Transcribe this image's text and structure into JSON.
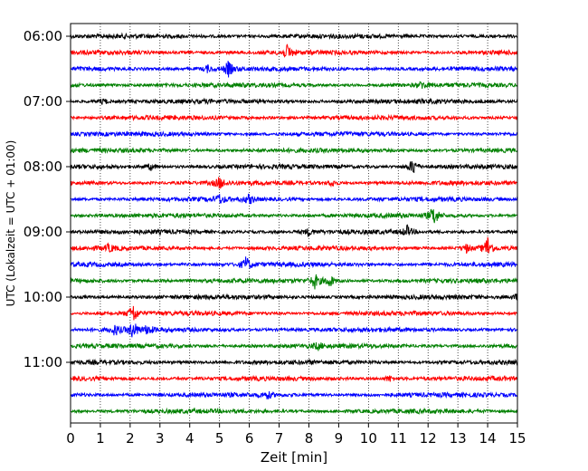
{
  "chart_data": {
    "type": "line",
    "title": "",
    "xlabel": "Zeit  [min]",
    "ylabel": "UTC (Lokalzeit = UTC + 01:00)",
    "xlim": [
      0,
      15
    ],
    "x_ticks": [
      "0",
      "1",
      "2",
      "3",
      "4",
      "5",
      "6",
      "7",
      "8",
      "9",
      "10",
      "11",
      "12",
      "13",
      "14",
      "15"
    ],
    "y_ticks": [
      "06:00",
      "07:00",
      "08:00",
      "09:00",
      "10:00",
      "11:00"
    ],
    "row_minutes": 15,
    "first_row": "06:00",
    "trace_count": 24,
    "trace_colors": [
      "#000000",
      "#ff0000",
      "#0000ff",
      "#008000"
    ],
    "grid": "vertical dotted",
    "events": [
      {
        "trace": 1,
        "minute": 7.3,
        "amp": 0.7
      },
      {
        "trace": 2,
        "minute": 5.3,
        "amp": 0.7
      },
      {
        "trace": 2,
        "minute": 4.6,
        "amp": 0.3
      },
      {
        "trace": 3,
        "minute": 11.8,
        "amp": 0.3
      },
      {
        "trace": 4,
        "minute": 1.1,
        "amp": 0.3
      },
      {
        "trace": 8,
        "minute": 11.5,
        "amp": 0.8
      },
      {
        "trace": 8,
        "minute": 2.7,
        "amp": 0.3
      },
      {
        "trace": 9,
        "minute": 5.0,
        "amp": 0.5
      },
      {
        "trace": 9,
        "minute": 8.8,
        "amp": 0.3
      },
      {
        "trace": 10,
        "minute": 5.0,
        "amp": 0.4
      },
      {
        "trace": 10,
        "minute": 6.0,
        "amp": 0.4
      },
      {
        "trace": 11,
        "minute": 12.2,
        "amp": 0.9
      },
      {
        "trace": 12,
        "minute": 11.3,
        "amp": 0.5
      },
      {
        "trace": 12,
        "minute": 8.0,
        "amp": 0.3
      },
      {
        "trace": 13,
        "minute": 14.0,
        "amp": 1.1
      },
      {
        "trace": 13,
        "minute": 13.3,
        "amp": 0.4
      },
      {
        "trace": 13,
        "minute": 1.3,
        "amp": 0.3
      },
      {
        "trace": 14,
        "minute": 5.9,
        "amp": 0.7
      },
      {
        "trace": 15,
        "minute": 8.2,
        "amp": 0.7
      },
      {
        "trace": 15,
        "minute": 8.7,
        "amp": 0.6
      },
      {
        "trace": 16,
        "minute": 15.0,
        "amp": 0.3
      },
      {
        "trace": 17,
        "minute": 2.1,
        "amp": 0.9
      },
      {
        "trace": 18,
        "minute": 2.1,
        "amp": 0.8
      },
      {
        "trace": 18,
        "minute": 1.5,
        "amp": 0.5
      },
      {
        "trace": 18,
        "minute": 2.6,
        "amp": 0.4
      },
      {
        "trace": 19,
        "minute": 8.3,
        "amp": 0.3
      },
      {
        "trace": 21,
        "minute": 10.7,
        "amp": 0.3
      },
      {
        "trace": 22,
        "minute": 6.6,
        "amp": 0.3
      }
    ]
  }
}
